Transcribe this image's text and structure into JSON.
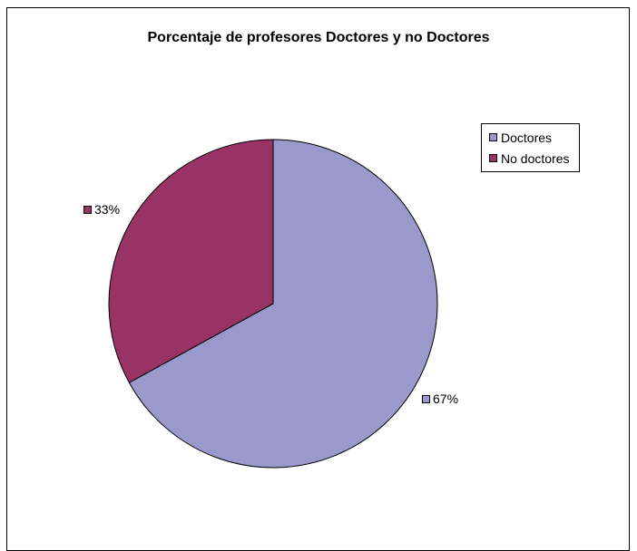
{
  "chart_data": {
    "type": "pie",
    "title": "Porcentaje de profesores Doctores y no Doctores",
    "categories": [
      "Doctores",
      "No doctores"
    ],
    "values": [
      67,
      33
    ],
    "labels": [
      "67%",
      "33%"
    ],
    "colors": [
      "#9999cc",
      "#993366"
    ],
    "legend_position": "top-right"
  }
}
